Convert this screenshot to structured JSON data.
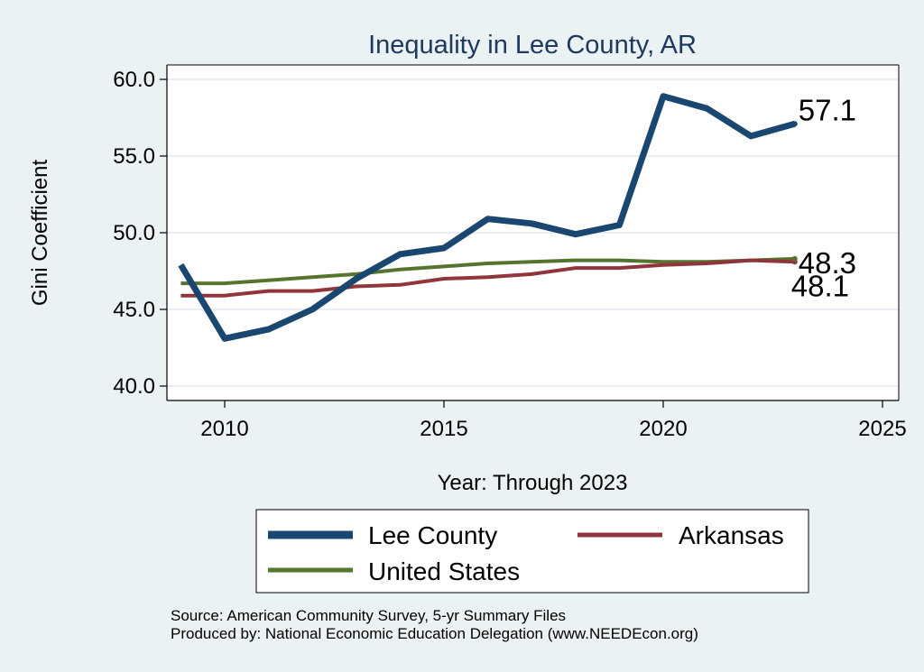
{
  "chart_data": {
    "type": "line",
    "title": "Inequality in Lee County, AR",
    "xlabel": "Year: Through 2023",
    "ylabel": "Gini Coefficient",
    "xlim": [
      2008.7,
      2025
    ],
    "ylim": [
      40,
      60
    ],
    "x_ticks": [
      2010,
      2015,
      2020,
      2025
    ],
    "y_ticks": [
      40.0,
      45.0,
      50.0,
      55.0,
      60.0
    ],
    "x_tick_labels": [
      "2010",
      "2015",
      "2020",
      "2025"
    ],
    "y_tick_labels": [
      "40.0",
      "45.0",
      "50.0",
      "55.0",
      "60.0"
    ],
    "grid": true,
    "legend_position": "bottom",
    "x": [
      2009,
      2010,
      2011,
      2012,
      2013,
      2014,
      2015,
      2016,
      2017,
      2018,
      2019,
      2020,
      2021,
      2022,
      2023
    ],
    "series": [
      {
        "name": "Lee County",
        "color": "#1a476f",
        "values": [
          47.9,
          43.1,
          43.7,
          45.0,
          47.0,
          48.6,
          49.0,
          50.9,
          50.6,
          49.9,
          50.5,
          58.9,
          58.1,
          56.3,
          57.1
        ],
        "end_label": "57.1"
      },
      {
        "name": "Arkansas",
        "color": "#90353b",
        "values": [
          45.9,
          45.9,
          46.2,
          46.2,
          46.5,
          46.6,
          47.0,
          47.1,
          47.3,
          47.7,
          47.7,
          47.9,
          48.0,
          48.2,
          48.1
        ],
        "end_label": "48.1"
      },
      {
        "name": "United States",
        "color": "#55752f",
        "values": [
          46.7,
          46.7,
          46.9,
          47.1,
          47.3,
          47.6,
          47.8,
          48.0,
          48.1,
          48.2,
          48.2,
          48.1,
          48.1,
          48.2,
          48.3
        ],
        "end_label": "48.3"
      }
    ],
    "legend": [
      "Lee County",
      "Arkansas",
      "United States"
    ],
    "notes": [
      "Source: American Community Survey, 5-yr Summary Files",
      "Produced by: National Economic Education Delegation (www.NEEDEcon.org)"
    ]
  }
}
